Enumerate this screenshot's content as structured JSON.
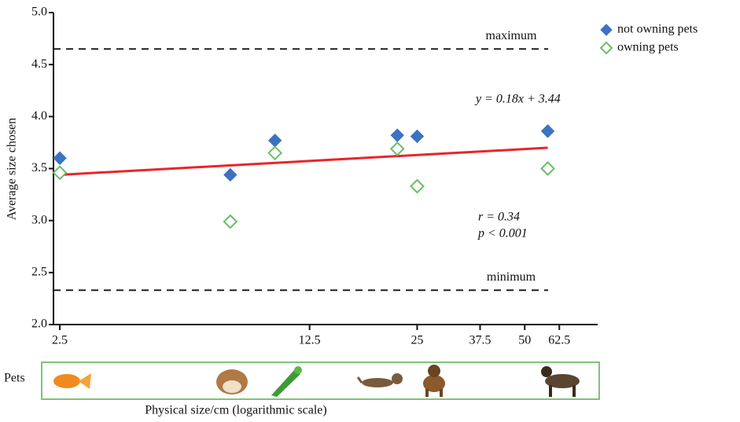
{
  "chart_data": {
    "type": "scatter",
    "xlabel": "Physical size/cm (logarithmic scale)",
    "ylabel": "Average size chosen",
    "xscale": "log",
    "xlim": [
      2.4,
      80
    ],
    "ylim": [
      2.0,
      5.0
    ],
    "xticks": [
      2.5,
      12.5,
      25,
      37.5,
      50,
      62.5
    ],
    "yticks": [
      {
        "value": 2.0,
        "label": "2.0"
      },
      {
        "value": 2.5,
        "label": "2.5"
      },
      {
        "value": 3.0,
        "label": "3.0"
      },
      {
        "value": 3.5,
        "label": "3.5"
      },
      {
        "value": 4.0,
        "label": "4.0"
      },
      {
        "value": 4.5,
        "label": "4.5"
      },
      {
        "value": 5.0,
        "label": "5.0"
      }
    ],
    "legend": "top-right",
    "series": [
      {
        "name": "not owning pets",
        "color": "#3b73c0",
        "marker": "filled-diamond",
        "x": [
          2.5,
          7.5,
          10,
          22,
          25,
          58
        ],
        "values": [
          3.6,
          3.44,
          3.77,
          3.82,
          3.81,
          3.86
        ]
      },
      {
        "name": "owning pets",
        "color": "#6cbd6a",
        "marker": "open-diamond",
        "x": [
          2.5,
          7.5,
          10,
          22,
          25,
          58
        ],
        "values": [
          3.46,
          2.99,
          3.65,
          3.69,
          3.33,
          3.5
        ]
      }
    ],
    "fit_line": {
      "color": "#e8262a",
      "x": [
        2.5,
        58
      ],
      "values": [
        3.44,
        3.7
      ]
    },
    "reference_lines": [
      {
        "label": "maximum",
        "value": 4.65
      },
      {
        "label": "minimum",
        "value": 2.33
      }
    ],
    "annotations": {
      "equation": "y = 0.18x + 3.44",
      "r": "r = 0.34",
      "p": "p < 0.001"
    },
    "pets_label": "Pets"
  }
}
